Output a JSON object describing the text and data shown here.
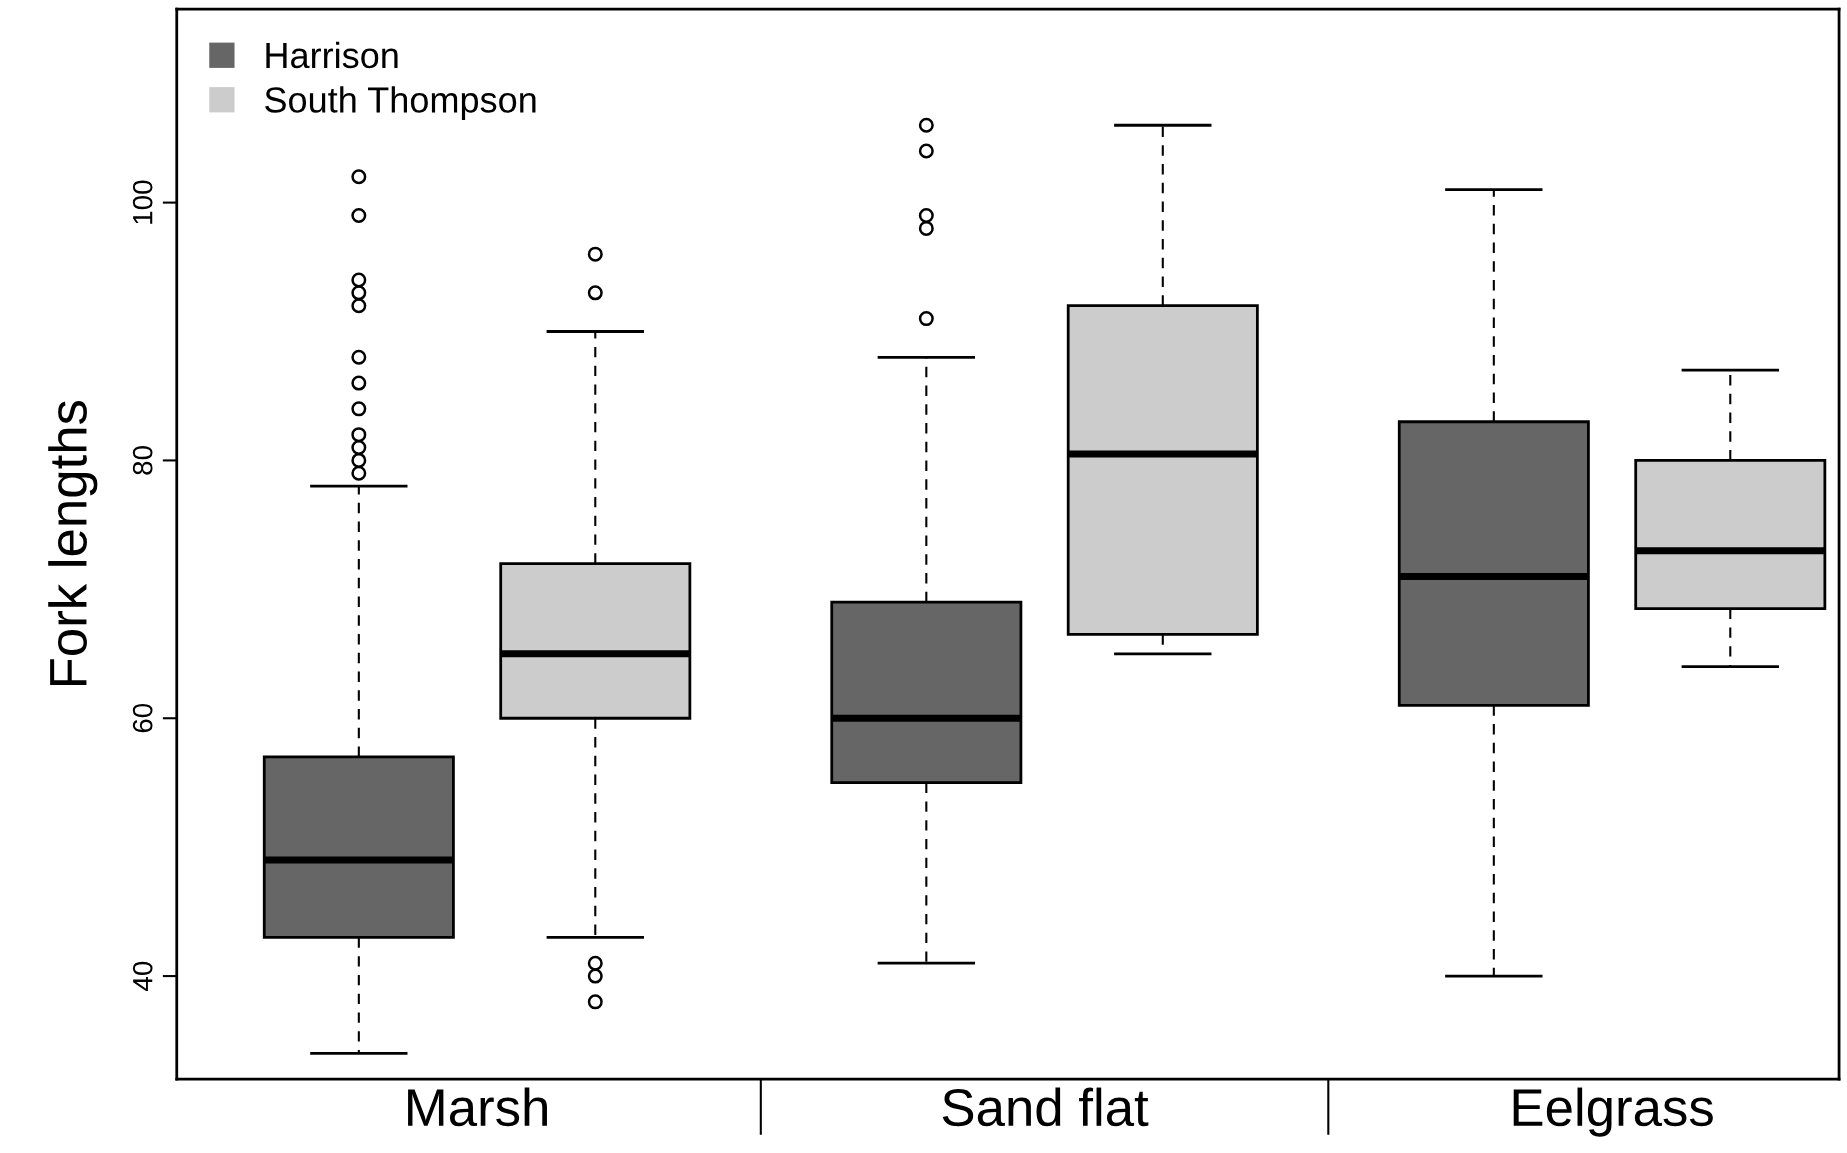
{
  "chart_data": {
    "type": "box",
    "ylabel": "Fork lengths",
    "categories": [
      "Marsh",
      "Sand flat",
      "Eelgrass"
    ],
    "ylim": [
      32,
      115
    ],
    "yticks": [
      40,
      60,
      80,
      100
    ],
    "grid": false,
    "legend": "top left",
    "marker": "circle",
    "series": [
      {
        "name": "Harrison",
        "color": "#666666",
        "boxes": [
          {
            "low": 34,
            "q1": 43,
            "median": 49,
            "q3": 57,
            "high": 78,
            "outliers": [
              79,
              80,
              81,
              82,
              84,
              86,
              88,
              92,
              93,
              94,
              99,
              102
            ]
          },
          {
            "low": 41,
            "q1": 55,
            "median": 60,
            "q3": 69,
            "high": 88,
            "outliers": [
              91,
              98,
              99,
              104,
              106
            ]
          },
          {
            "low": 40,
            "q1": 61,
            "median": 71,
            "q3": 83,
            "high": 101
          }
        ]
      },
      {
        "name": "South Thompson",
        "color": "#cccccc",
        "boxes": [
          {
            "low": 43,
            "q1": 60,
            "median": 65,
            "q3": 72,
            "high": 90,
            "outliers": [
              38,
              40,
              41,
              93,
              96
            ]
          },
          {
            "low": 65,
            "q1": 66.5,
            "median": 80.5,
            "q3": 92,
            "high": 106
          },
          {
            "low": 64,
            "q1": 68.5,
            "median": 73,
            "q3": 80,
            "high": 87
          }
        ]
      }
    ]
  }
}
